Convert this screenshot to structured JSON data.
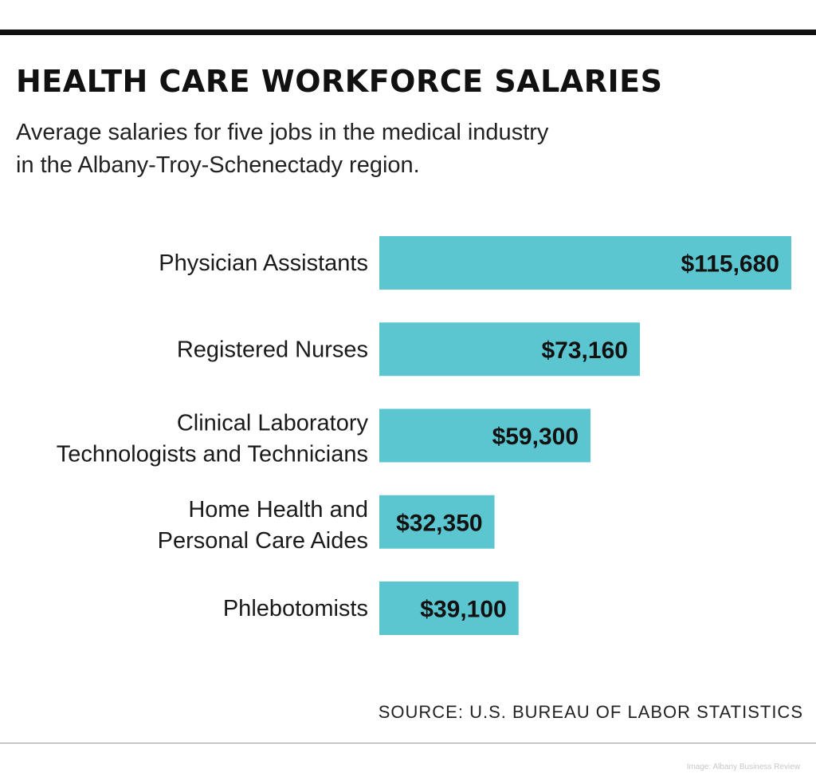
{
  "title": "HEALTH CARE WORKFORCE SALARIES",
  "subtitle_lines": [
    "Average salaries for five jobs in the medical industry",
    "in the Albany-Troy-Schenectady region."
  ],
  "source": "SOURCE: U.S. BUREAU OF LABOR STATISTICS",
  "credit": "Image: Albany Business Review",
  "colors": {
    "bar": "#5bc6d0",
    "rule": "#111111",
    "text": "#1a1a1a"
  },
  "chart_data": {
    "type": "bar",
    "orientation": "horizontal",
    "title": "HEALTH CARE WORKFORCE SALARIES",
    "subtitle": "Average salaries for five jobs in the medical industry in the Albany-Troy-Schenectady region.",
    "categories": [
      [
        "Physician Assistants"
      ],
      [
        "Registered Nurses"
      ],
      [
        "Clinical Laboratory",
        "Technologists and Technicians"
      ],
      [
        "Home Health and",
        "Personal Care Aides"
      ],
      [
        "Phlebotomists"
      ]
    ],
    "values": [
      115680,
      73160,
      59300,
      32350,
      39100
    ],
    "value_labels": [
      "$115,680",
      "$73,160",
      "$59,300",
      "$32,350",
      "$39,100"
    ],
    "xlim": [
      0,
      115680
    ],
    "grid": false,
    "legend": "none"
  }
}
